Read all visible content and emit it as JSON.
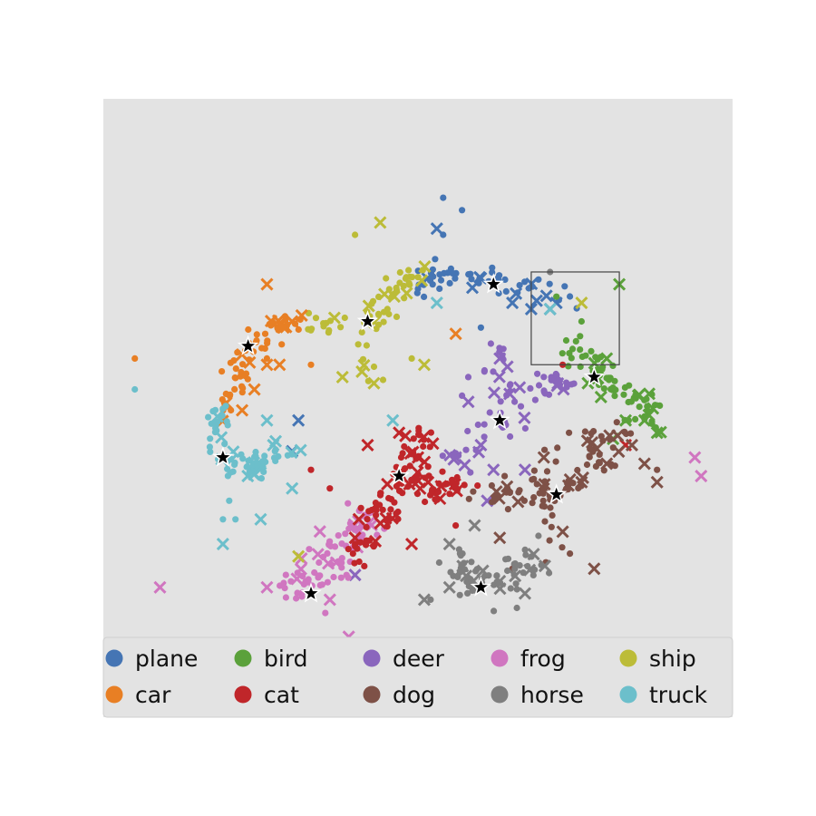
{
  "chart_data": {
    "type": "scatter",
    "title": "",
    "xlabel": "",
    "ylabel": "",
    "xlim": [
      0,
      100
    ],
    "ylim": [
      0,
      100
    ],
    "grid": false,
    "background": "#e3e3e3",
    "legend": {
      "placement": "bottom",
      "columns": 5,
      "entries": [
        "plane",
        "bird",
        "deer",
        "frog",
        "ship",
        "car",
        "cat",
        "dog",
        "horse",
        "truck"
      ]
    },
    "inset_box": {
      "x": [
        68,
        82
      ],
      "y": [
        57,
        72
      ]
    },
    "series": [
      {
        "name": "plane",
        "color": "#4575b4",
        "centroid": [
          62,
          70
        ],
        "arm": [
          [
            49,
            69
          ],
          [
            53,
            71
          ],
          [
            57,
            71
          ],
          [
            62,
            71
          ],
          [
            67,
            70
          ],
          [
            71,
            69
          ],
          [
            75,
            67
          ]
        ],
        "spread": 1.2,
        "dots": 55,
        "extra_dots": [
          [
            54,
            84
          ],
          [
            57,
            82
          ],
          [
            54,
            78
          ],
          [
            60,
            63
          ]
        ],
        "crosses": [
          [
            60,
            71
          ],
          [
            65,
            67
          ],
          [
            68,
            66
          ],
          [
            72,
            67
          ],
          [
            53,
            79
          ],
          [
            31,
            48
          ],
          [
            30,
            43
          ],
          [
            71,
            66
          ]
        ]
      },
      {
        "name": "bird",
        "color": "#5ba13b",
        "centroid": [
          78,
          55
        ],
        "arm": [
          [
            73,
            61
          ],
          [
            76,
            58
          ],
          [
            78,
            55
          ],
          [
            82,
            53
          ],
          [
            86,
            50
          ],
          [
            88,
            47
          ]
        ],
        "spread": 1.4,
        "dots": 70,
        "extra_dots": [
          [
            72,
            68
          ],
          [
            76,
            64
          ]
        ],
        "crosses": [
          [
            82,
            70
          ],
          [
            80,
            58
          ],
          [
            77,
            54
          ],
          [
            85,
            52
          ],
          [
            86,
            48
          ],
          [
            81,
            45
          ],
          [
            83,
            48
          ],
          [
            88,
            46
          ]
        ]
      },
      {
        "name": "deer",
        "color": "#8a66bd",
        "centroid": [
          63,
          48
        ],
        "arm": [
          [
            55,
            41
          ],
          [
            59,
            44
          ],
          [
            63,
            48
          ],
          [
            67,
            51
          ],
          [
            71,
            53
          ],
          [
            73,
            54
          ],
          [
            62,
            53
          ],
          [
            63,
            58
          ]
        ],
        "spread": 1.4,
        "dots": 70,
        "extra_dots": [
          [
            57,
            52
          ],
          [
            58,
            55
          ]
        ],
        "crosses": [
          [
            56,
            42
          ],
          [
            60,
            44
          ],
          [
            58,
            51
          ],
          [
            63,
            58
          ],
          [
            67,
            40
          ],
          [
            62,
            40
          ],
          [
            61,
            35
          ],
          [
            40,
            23
          ]
        ]
      },
      {
        "name": "frog",
        "color": "#d076c0",
        "centroid": [
          33,
          20
        ],
        "arm": [
          [
            30,
            21
          ],
          [
            33,
            22
          ],
          [
            36,
            25
          ],
          [
            38,
            28
          ],
          [
            40,
            30
          ],
          [
            42,
            32
          ]
        ],
        "spread": 1.6,
        "dots": 80,
        "extra_dots": [
          [
            23,
            9
          ],
          [
            29,
            23
          ]
        ],
        "crosses": [
          [
            37,
            25
          ],
          [
            36,
            19
          ],
          [
            39,
            13
          ],
          [
            26,
            21
          ],
          [
            9,
            21
          ],
          [
            94,
            42
          ],
          [
            95,
            39
          ]
        ]
      },
      {
        "name": "ship",
        "color": "#bcbc38",
        "centroid": [
          42,
          64
        ],
        "arm": [
          [
            33,
            63
          ],
          [
            37,
            63
          ],
          [
            42,
            64
          ],
          [
            44,
            67
          ],
          [
            47,
            70
          ],
          [
            50,
            72
          ],
          [
            42,
            59
          ],
          [
            43,
            54
          ]
        ],
        "spread": 1.2,
        "dots": 65,
        "extra_dots": [
          [
            40,
            78
          ],
          [
            49,
            58
          ]
        ],
        "crosses": [
          [
            44,
            80
          ],
          [
            38,
            55
          ],
          [
            43,
            54
          ],
          [
            51,
            57
          ],
          [
            31,
            26
          ],
          [
            76,
            67
          ]
        ]
      },
      {
        "name": "car",
        "color": "#e87f24",
        "centroid": [
          23,
          60
        ],
        "arm": [
          [
            20,
            50
          ],
          [
            21,
            53
          ],
          [
            22,
            56
          ],
          [
            23,
            59
          ],
          [
            25,
            61
          ],
          [
            28,
            63
          ],
          [
            31,
            63
          ]
        ],
        "spread": 1.3,
        "dots": 65,
        "extra_dots": [
          [
            5,
            58
          ],
          [
            26,
            58
          ],
          [
            33,
            57
          ]
        ],
        "crosses": [
          [
            26,
            70
          ],
          [
            30,
            64
          ],
          [
            28,
            57
          ],
          [
            56,
            62
          ],
          [
            24,
            53
          ],
          [
            26,
            57
          ]
        ]
      },
      {
        "name": "cat",
        "color": "#c0262a",
        "centroid": [
          47,
          39
        ],
        "arm": [
          [
            40,
            26
          ],
          [
            42,
            29
          ],
          [
            44,
            33
          ],
          [
            45,
            36
          ],
          [
            47,
            39
          ],
          [
            50,
            37
          ],
          [
            54,
            37
          ],
          [
            57,
            37
          ],
          [
            48,
            43
          ],
          [
            51,
            46
          ]
        ],
        "spread": 1.4,
        "dots": 120,
        "extra_dots": [
          [
            36,
            37
          ],
          [
            33,
            40
          ],
          [
            73,
            57
          ],
          [
            56,
            31
          ],
          [
            40,
            28
          ]
        ],
        "crosses": [
          [
            47,
            46
          ],
          [
            42,
            44
          ],
          [
            50,
            42
          ],
          [
            49,
            28
          ],
          [
            40,
            29
          ],
          [
            83,
            44
          ]
        ]
      },
      {
        "name": "dog",
        "color": "#7e5147",
        "centroid": [
          72,
          36
        ],
        "arm": [
          [
            59,
            36
          ],
          [
            63,
            36
          ],
          [
            67,
            36
          ],
          [
            71,
            36
          ],
          [
            74,
            37
          ],
          [
            77,
            40
          ],
          [
            80,
            43
          ],
          [
            83,
            46
          ],
          [
            69,
            41
          ],
          [
            71,
            31
          ],
          [
            72,
            27
          ]
        ],
        "spread": 1.3,
        "dots": 95,
        "extra_dots": [
          [
            74,
            46
          ],
          [
            88,
            40
          ],
          [
            65,
            24
          ]
        ],
        "crosses": [
          [
            70,
            42
          ],
          [
            76,
            38
          ],
          [
            80,
            41
          ],
          [
            84,
            44
          ],
          [
            86,
            41
          ],
          [
            88,
            38
          ],
          [
            78,
            24
          ],
          [
            63,
            29
          ],
          [
            73,
            30
          ]
        ]
      },
      {
        "name": "horse",
        "color": "#7f7f7f",
        "centroid": [
          60,
          21
        ],
        "arm": [
          [
            56,
            27
          ],
          [
            57,
            24
          ],
          [
            59,
            22
          ],
          [
            61,
            21
          ],
          [
            64,
            23
          ],
          [
            67,
            25
          ],
          [
            70,
            27
          ],
          [
            63,
            19
          ]
        ],
        "spread": 1.4,
        "dots": 70,
        "extra_dots": [
          [
            52,
            19
          ],
          [
            71,
            72
          ]
        ],
        "crosses": [
          [
            55,
            21
          ],
          [
            51,
            19
          ],
          [
            55,
            28
          ],
          [
            59,
            31
          ],
          [
            63,
            22
          ],
          [
            67,
            20
          ]
        ]
      },
      {
        "name": "truck",
        "color": "#6cbfcb",
        "centroid": [
          19,
          42
        ],
        "arm": [
          [
            18,
            50
          ],
          [
            18,
            46
          ],
          [
            19,
            42
          ],
          [
            21,
            41
          ],
          [
            24,
            40
          ],
          [
            26,
            42
          ],
          [
            28,
            44
          ]
        ],
        "spread": 1.3,
        "dots": 70,
        "extra_dots": [
          [
            5,
            53
          ],
          [
            20,
            35
          ],
          [
            21,
            32
          ],
          [
            19,
            32
          ]
        ],
        "crosses": [
          [
            26,
            48
          ],
          [
            30,
            37
          ],
          [
            25,
            32
          ],
          [
            19,
            28
          ],
          [
            46,
            48
          ],
          [
            53,
            67
          ],
          [
            71,
            66
          ],
          [
            27,
            44
          ]
        ]
      }
    ]
  }
}
